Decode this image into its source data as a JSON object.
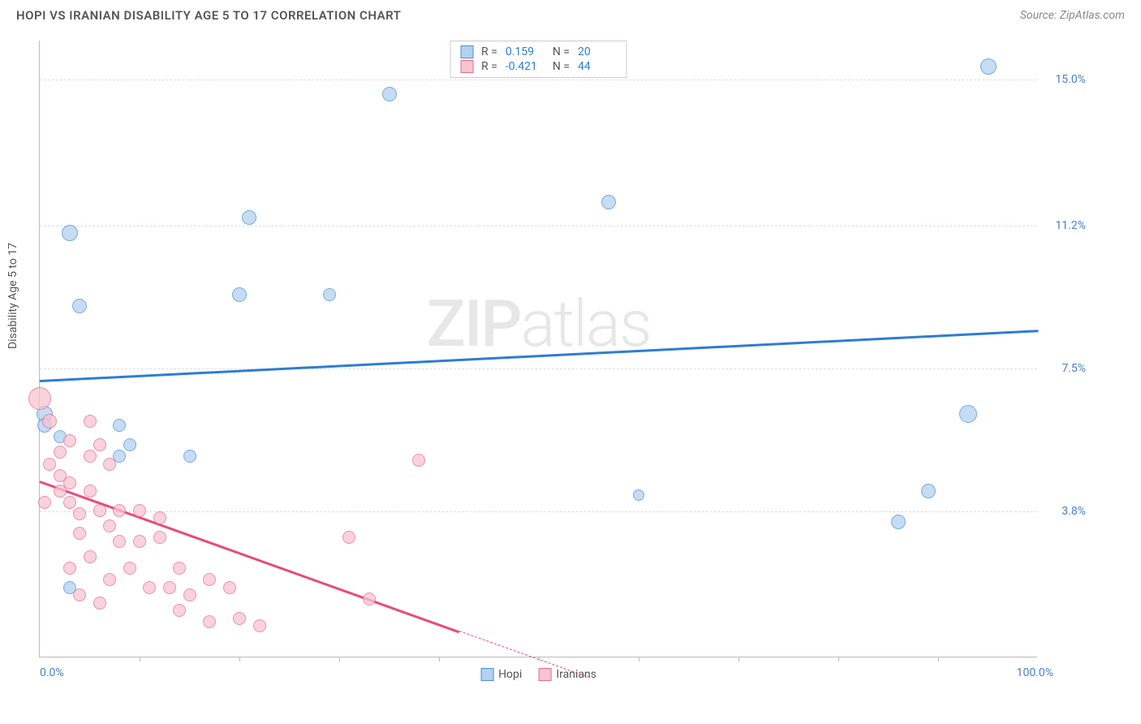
{
  "title": "HOPI VS IRANIAN DISABILITY AGE 5 TO 17 CORRELATION CHART",
  "source": "Source: ZipAtlas.com",
  "ylabel": "Disability Age 5 to 17",
  "watermark_a": "ZIP",
  "watermark_b": "atlas",
  "chart": {
    "type": "scatter",
    "xlim": [
      0,
      100
    ],
    "ylim": [
      0,
      16
    ],
    "background_color": "#ffffff",
    "grid_color": "#dddddd",
    "yticks": [
      {
        "v": 3.8,
        "label": "3.8%"
      },
      {
        "v": 7.5,
        "label": "7.5%"
      },
      {
        "v": 11.2,
        "label": "11.2%"
      },
      {
        "v": 15.0,
        "label": "15.0%"
      }
    ],
    "xticks_minor": [
      10,
      20,
      30,
      40,
      50,
      60,
      70,
      80,
      90
    ],
    "xlabels": [
      {
        "v": 0,
        "label": "0.0%",
        "align": "left"
      },
      {
        "v": 100,
        "label": "100.0%",
        "align": "right"
      }
    ],
    "series": [
      {
        "name": "Hopi",
        "fill": "#b3d1f0",
        "stroke": "#4a90d9",
        "line_color": "#2d7dd2",
        "r": "0.159",
        "n": "20",
        "trend": {
          "x1": 0,
          "y1": 7.2,
          "x2": 100,
          "y2": 8.5
        },
        "pts": [
          {
            "x": 3,
            "y": 11.0,
            "s": 10
          },
          {
            "x": 21,
            "y": 11.4,
            "s": 9
          },
          {
            "x": 35,
            "y": 14.6,
            "s": 9
          },
          {
            "x": 4,
            "y": 9.1,
            "s": 9
          },
          {
            "x": 20,
            "y": 9.4,
            "s": 9
          },
          {
            "x": 29,
            "y": 9.4,
            "s": 8
          },
          {
            "x": 57,
            "y": 11.8,
            "s": 9
          },
          {
            "x": 95,
            "y": 15.3,
            "s": 10
          },
          {
            "x": 0.5,
            "y": 6.3,
            "s": 10
          },
          {
            "x": 0.5,
            "y": 6.0,
            "s": 9
          },
          {
            "x": 2,
            "y": 5.7,
            "s": 8
          },
          {
            "x": 8,
            "y": 6.0,
            "s": 8
          },
          {
            "x": 9,
            "y": 5.5,
            "s": 8
          },
          {
            "x": 15,
            "y": 5.2,
            "s": 8
          },
          {
            "x": 8,
            "y": 5.2,
            "s": 8
          },
          {
            "x": 3,
            "y": 1.8,
            "s": 8
          },
          {
            "x": 86,
            "y": 3.5,
            "s": 9
          },
          {
            "x": 89,
            "y": 4.3,
            "s": 9
          },
          {
            "x": 93,
            "y": 6.3,
            "s": 11
          },
          {
            "x": 60,
            "y": 4.2,
            "s": 7
          }
        ]
      },
      {
        "name": "Iranians",
        "fill": "#f7c5d1",
        "stroke": "#e86a8f",
        "line_color": "#e84b7a",
        "r": "-0.421",
        "n": "44",
        "trend_solid": {
          "x1": 0,
          "y1": 4.6,
          "x2": 42,
          "y2": 0.7
        },
        "trend_dash": {
          "x1": 42,
          "y1": 0.7,
          "x2": 55,
          "y2": -0.5
        },
        "pts": [
          {
            "x": 0,
            "y": 6.7,
            "s": 14
          },
          {
            "x": 1,
            "y": 6.1,
            "s": 9
          },
          {
            "x": 2,
            "y": 5.3,
            "s": 8
          },
          {
            "x": 5,
            "y": 6.1,
            "s": 8
          },
          {
            "x": 6,
            "y": 5.5,
            "s": 8
          },
          {
            "x": 3,
            "y": 5.6,
            "s": 8
          },
          {
            "x": 5,
            "y": 5.2,
            "s": 8
          },
          {
            "x": 7,
            "y": 5.0,
            "s": 8
          },
          {
            "x": 1,
            "y": 5.0,
            "s": 8
          },
          {
            "x": 2,
            "y": 4.7,
            "s": 8
          },
          {
            "x": 3,
            "y": 4.5,
            "s": 8
          },
          {
            "x": 5,
            "y": 4.3,
            "s": 8
          },
          {
            "x": 2,
            "y": 4.3,
            "s": 8
          },
          {
            "x": 0.5,
            "y": 4.0,
            "s": 8
          },
          {
            "x": 3,
            "y": 4.0,
            "s": 8
          },
          {
            "x": 4,
            "y": 3.7,
            "s": 8
          },
          {
            "x": 6,
            "y": 3.8,
            "s": 8
          },
          {
            "x": 8,
            "y": 3.8,
            "s": 8
          },
          {
            "x": 10,
            "y": 3.8,
            "s": 8
          },
          {
            "x": 12,
            "y": 3.6,
            "s": 8
          },
          {
            "x": 7,
            "y": 3.4,
            "s": 8
          },
          {
            "x": 4,
            "y": 3.2,
            "s": 8
          },
          {
            "x": 8,
            "y": 3.0,
            "s": 8
          },
          {
            "x": 10,
            "y": 3.0,
            "s": 8
          },
          {
            "x": 12,
            "y": 3.1,
            "s": 8
          },
          {
            "x": 5,
            "y": 2.6,
            "s": 8
          },
          {
            "x": 3,
            "y": 2.3,
            "s": 8
          },
          {
            "x": 7,
            "y": 2.0,
            "s": 8
          },
          {
            "x": 9,
            "y": 2.3,
            "s": 8
          },
          {
            "x": 11,
            "y": 1.8,
            "s": 8
          },
          {
            "x": 13,
            "y": 1.8,
            "s": 8
          },
          {
            "x": 15,
            "y": 1.6,
            "s": 8
          },
          {
            "x": 14,
            "y": 2.3,
            "s": 8
          },
          {
            "x": 17,
            "y": 0.9,
            "s": 8
          },
          {
            "x": 19,
            "y": 1.8,
            "s": 8
          },
          {
            "x": 20,
            "y": 1.0,
            "s": 8
          },
          {
            "x": 22,
            "y": 0.8,
            "s": 8
          },
          {
            "x": 17,
            "y": 2.0,
            "s": 8
          },
          {
            "x": 31,
            "y": 3.1,
            "s": 8
          },
          {
            "x": 33,
            "y": 1.5,
            "s": 8
          },
          {
            "x": 38,
            "y": 5.1,
            "s": 8
          },
          {
            "x": 4,
            "y": 1.6,
            "s": 8
          },
          {
            "x": 6,
            "y": 1.4,
            "s": 8
          },
          {
            "x": 14,
            "y": 1.2,
            "s": 8
          }
        ]
      }
    ]
  },
  "legend_bottom": [
    {
      "label": "Hopi",
      "series": 0
    },
    {
      "label": "Iranians",
      "series": 1
    }
  ]
}
